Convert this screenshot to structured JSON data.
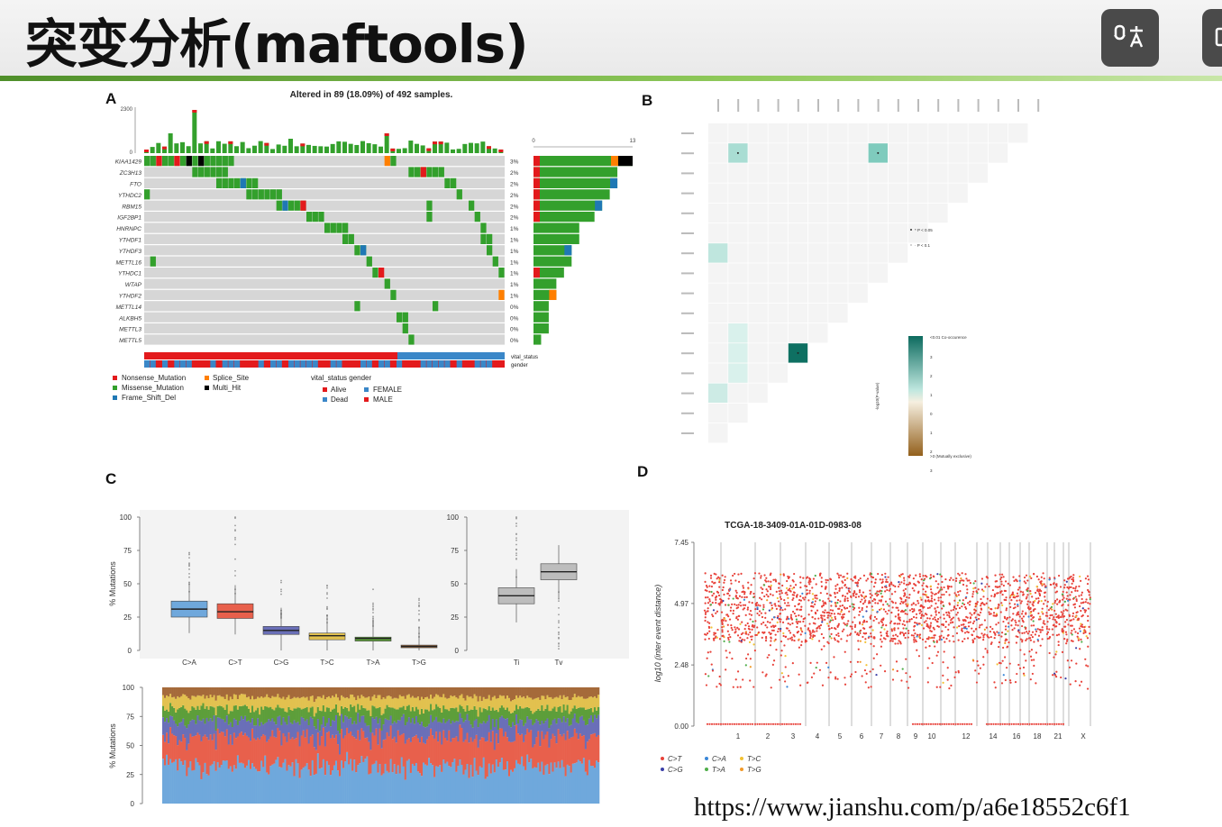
{
  "slide": {
    "title": "突变分析(maftools)",
    "url": "https://www.jianshu.com/p/a6e18552c6f1",
    "toolbar": [
      {
        "icon": "subtitle-translate-icon"
      },
      {
        "icon": "window-icon"
      }
    ]
  },
  "panels": {
    "a": "A",
    "b": "B",
    "c": "C",
    "d": "D"
  },
  "colors": {
    "missense": "#33a02c",
    "nonsense": "#e31a1c",
    "frameshift": "#1f78b4",
    "splice": "#ff7f00",
    "multi": "#000000",
    "alive": "#e31a1c",
    "dead": "#3a87c8",
    "female": "#3a87c8",
    "male": "#e31a1c",
    "grid": "#d6d6d6"
  },
  "chart_data": [
    {
      "type": "oncoplot",
      "title": "Altered in 89 (18.09%) of 492 samples.",
      "top_axis": {
        "ymax": "2300",
        "ymin": "0"
      },
      "side_axis": {
        "xmin": "0",
        "xmax": "13"
      },
      "genes": [
        {
          "name": "KIAA1429",
          "pct": "3%",
          "bar": 13
        },
        {
          "name": "ZC3H13",
          "pct": "2%",
          "bar": 11
        },
        {
          "name": "FTO",
          "pct": "2%",
          "bar": 11
        },
        {
          "name": "YTHDC2",
          "pct": "2%",
          "bar": 10
        },
        {
          "name": "RBM15",
          "pct": "2%",
          "bar": 9
        },
        {
          "name": "IGF2BP1",
          "pct": "2%",
          "bar": 8
        },
        {
          "name": "HNRNPC",
          "pct": "1%",
          "bar": 6
        },
        {
          "name": "YTHDF1",
          "pct": "1%",
          "bar": 6
        },
        {
          "name": "YTHDF3",
          "pct": "1%",
          "bar": 5
        },
        {
          "name": "METTL16",
          "pct": "1%",
          "bar": 5
        },
        {
          "name": "YTHDC1",
          "pct": "1%",
          "bar": 4
        },
        {
          "name": "WTAP",
          "pct": "1%",
          "bar": 3
        },
        {
          "name": "YTHDF2",
          "pct": "1%",
          "bar": 3
        },
        {
          "name": "METTL14",
          "pct": "0%",
          "bar": 2
        },
        {
          "name": "ALKBH5",
          "pct": "0%",
          "bar": 2
        },
        {
          "name": "METTL3",
          "pct": "0%",
          "bar": 2
        },
        {
          "name": "METTL5",
          "pct": "0%",
          "bar": 1
        }
      ],
      "annotation_labels": [
        "vital_status",
        "gender"
      ],
      "legend": {
        "variants": [
          "Nonsense_Mutation",
          "Splice_Site",
          "Missense_Mutation",
          "Multi_Hit",
          "Frame_Shift_Del"
        ],
        "clinical_header": "vital_status gender",
        "clinical": [
          "Alive",
          "FEMALE",
          "Dead",
          "MALE"
        ]
      }
    },
    {
      "type": "heatmap",
      "legend_top": "<0.01 Co-occurence",
      "legend_bottom": ">3 (Mutually exclusive)",
      "legend_axis": "-log10(P-value)",
      "legend_ticks": [
        "3",
        "2",
        "1",
        "0",
        "1",
        "2",
        "3"
      ],
      "sig_legend": [
        "* P < 0.05",
        "· P < 0.1"
      ]
    },
    {
      "type": "box",
      "y_label": "% Mutations",
      "y_ticks": [
        0,
        25,
        50,
        75,
        100
      ],
      "categories": [
        "C>A",
        "C>T",
        "C>G",
        "T>C",
        "T>A",
        "T>G"
      ],
      "medians": [
        31,
        29,
        15,
        11,
        9,
        3
      ],
      "q1": [
        25,
        24,
        12,
        8,
        7,
        2
      ],
      "q3": [
        37,
        35,
        18,
        13,
        10,
        4
      ],
      "box_colors": [
        "#6fa8dc",
        "#e8604c",
        "#6a6fb8",
        "#e2c14f",
        "#5d9e3a",
        "#a56a3a"
      ],
      "titv": {
        "categories": [
          "Ti",
          "Tv"
        ],
        "medians": [
          41,
          59
        ],
        "q1": [
          35,
          53
        ],
        "q3": [
          47,
          65
        ]
      },
      "stack_y_label": "% Mutations",
      "stack_y_ticks": [
        0,
        25,
        50,
        75,
        100
      ]
    },
    {
      "type": "scatter",
      "title": "TCGA-18-3409-01A-01D-0983-08",
      "y_label": "log10 (inter event distance)",
      "y_ticks": [
        "0.00",
        "2.48",
        "4.97",
        "7.45"
      ],
      "x_ticks": [
        "1",
        "2",
        "3",
        "4",
        "5",
        "6",
        "7",
        "8",
        "9",
        "10",
        "12",
        "14",
        "16",
        "18",
        "21",
        "X"
      ],
      "legend": [
        "C>T",
        "C>A",
        "T>C",
        "C>G",
        "T>A",
        "T>G"
      ],
      "legend_colors": [
        "#e8423a",
        "#3a87d8",
        "#f2c233",
        "#3b3fa8",
        "#4fae4a",
        "#f29a28"
      ]
    }
  ]
}
